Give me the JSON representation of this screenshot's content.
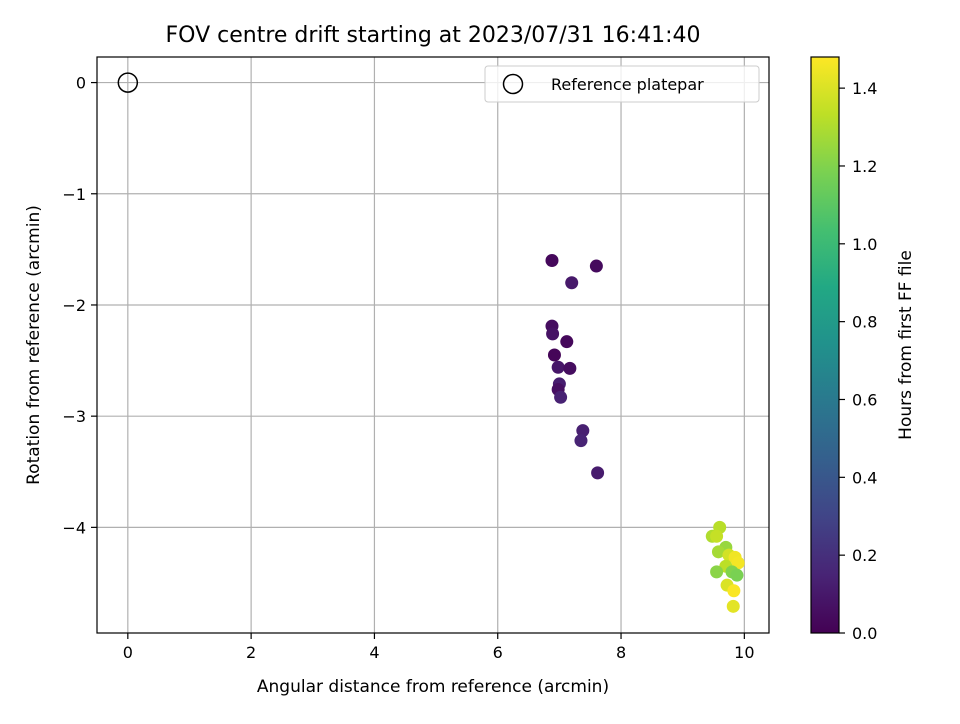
{
  "chart_data": {
    "type": "scatter",
    "title": "FOV centre drift starting at 2023/07/31 16:41:40",
    "xlabel": "Angular distance from reference (arcmin)",
    "ylabel": "Rotation from reference (arcmin)",
    "xlim": [
      -0.5,
      10.4
    ],
    "ylim": [
      -4.95,
      0.23
    ],
    "xticks": [
      "0",
      "2",
      "4",
      "6",
      "8",
      "10"
    ],
    "yticks": [
      "0",
      "−1",
      "−2",
      "−3",
      "−4"
    ],
    "grid": true,
    "legend_placement": "upper right",
    "reference": {
      "label": "Reference platepar",
      "x": 0,
      "y": 0
    },
    "colorbar": {
      "label": "Hours from first FF file",
      "range": [
        0,
        1.48
      ],
      "colormap": "viridis",
      "ticks": [
        "0.0",
        "0.2",
        "0.4",
        "0.6",
        "0.8",
        "1.0",
        "1.2",
        "1.4"
      ]
    },
    "points": [
      {
        "x": 6.88,
        "y": -1.6,
        "c": 0.03
      },
      {
        "x": 7.6,
        "y": -1.65,
        "c": 0.04
      },
      {
        "x": 7.2,
        "y": -1.8,
        "c": 0.1
      },
      {
        "x": 6.88,
        "y": -2.19,
        "c": 0.05
      },
      {
        "x": 6.89,
        "y": -2.26,
        "c": 0.07
      },
      {
        "x": 7.12,
        "y": -2.33,
        "c": 0.03
      },
      {
        "x": 6.92,
        "y": -2.45,
        "c": 0.02
      },
      {
        "x": 6.98,
        "y": -2.56,
        "c": 0.09
      },
      {
        "x": 7.17,
        "y": -2.57,
        "c": 0.05
      },
      {
        "x": 7.0,
        "y": -2.71,
        "c": 0.12
      },
      {
        "x": 6.98,
        "y": -2.76,
        "c": 0.06
      },
      {
        "x": 7.02,
        "y": -2.83,
        "c": 0.14
      },
      {
        "x": 7.38,
        "y": -3.13,
        "c": 0.13
      },
      {
        "x": 7.35,
        "y": -3.22,
        "c": 0.15
      },
      {
        "x": 7.62,
        "y": -3.51,
        "c": 0.11
      },
      {
        "x": 9.48,
        "y": -4.08,
        "c": 1.3
      },
      {
        "x": 9.6,
        "y": -4.0,
        "c": 1.32
      },
      {
        "x": 9.55,
        "y": -4.08,
        "c": 1.35
      },
      {
        "x": 9.7,
        "y": -4.18,
        "c": 1.25
      },
      {
        "x": 9.58,
        "y": -4.22,
        "c": 1.28
      },
      {
        "x": 9.75,
        "y": -4.25,
        "c": 1.38
      },
      {
        "x": 9.85,
        "y": -4.27,
        "c": 1.45
      },
      {
        "x": 9.9,
        "y": -4.32,
        "c": 1.46
      },
      {
        "x": 9.7,
        "y": -4.35,
        "c": 1.33
      },
      {
        "x": 9.8,
        "y": -4.4,
        "c": 1.2
      },
      {
        "x": 9.55,
        "y": -4.4,
        "c": 1.22
      },
      {
        "x": 9.88,
        "y": -4.43,
        "c": 1.18
      },
      {
        "x": 9.72,
        "y": -4.52,
        "c": 1.4
      },
      {
        "x": 9.83,
        "y": -4.57,
        "c": 1.47
      },
      {
        "x": 9.82,
        "y": -4.71,
        "c": 1.42
      }
    ]
  }
}
